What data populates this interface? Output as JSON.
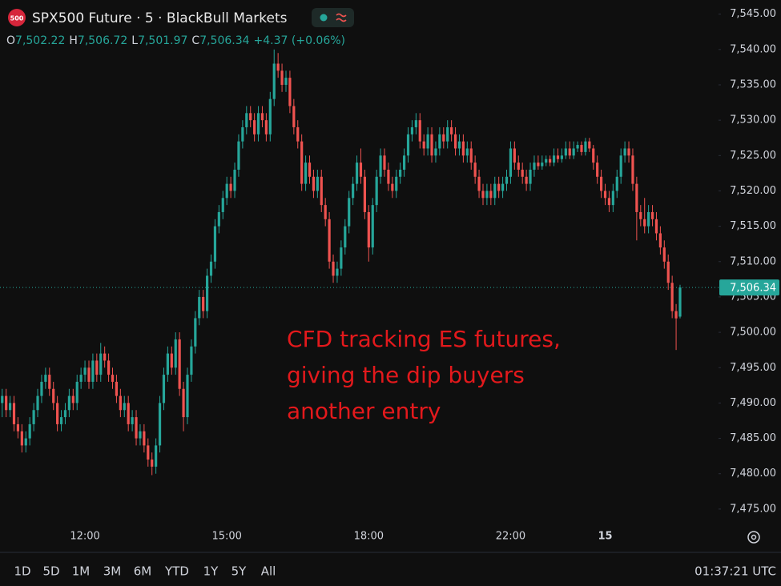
{
  "header": {
    "badge": "500",
    "title": "SPX500 Future · 5 · BlackBull Markets",
    "ohlc_legend": [
      {
        "key": "O",
        "label": "7,502.22"
      },
      {
        "key": "H",
        "label": "7,506.72"
      },
      {
        "key": "L",
        "label": "7,501.97"
      },
      {
        "key": "C",
        "label": "7,506.34"
      }
    ],
    "change_label": "+4.37 (+0.06%)"
  },
  "chart_data": {
    "type": "candlestick",
    "up_color": "#26a69a",
    "down_color": "#ef5350",
    "ylim": [
      7469.1,
      7547
    ],
    "yticks": [
      {
        "value": 7475,
        "label": "7,475.00"
      },
      {
        "value": 7480,
        "label": "7,480.00"
      },
      {
        "value": 7485,
        "label": "7,485.00"
      },
      {
        "value": 7490,
        "label": "7,490.00"
      },
      {
        "value": 7495,
        "label": "7,495.00"
      },
      {
        "value": 7500,
        "label": "7,500.00"
      },
      {
        "value": 7505,
        "label": "7,505.00"
      },
      {
        "value": 7510,
        "label": "7,510.00"
      },
      {
        "value": 7515,
        "label": "7,515.00"
      },
      {
        "value": 7520,
        "label": "7,520.00"
      },
      {
        "value": 7525,
        "label": "7,525.00"
      },
      {
        "value": 7530,
        "label": "7,530.00"
      },
      {
        "value": 7535,
        "label": "7,535.00"
      },
      {
        "value": 7540,
        "label": "7,540.00"
      },
      {
        "value": 7545,
        "label": "7,545.00"
      }
    ],
    "grid": false,
    "last_price": {
      "value": 7506.34,
      "label": "7,506.34"
    },
    "annotation": [
      "CFD tracking ES futures,",
      "giving the dip buyers",
      "another entry"
    ],
    "categories": [
      null,
      null,
      null,
      null,
      null,
      null,
      null,
      null,
      null,
      null,
      null,
      null,
      null,
      null,
      null,
      null,
      null,
      null,
      null,
      null,
      null,
      "12:00",
      null,
      null,
      null,
      null,
      null,
      null,
      null,
      null,
      null,
      null,
      null,
      null,
      null,
      null,
      null,
      null,
      null,
      null,
      null,
      null,
      null,
      null,
      null,
      null,
      null,
      null,
      null,
      null,
      null,
      null,
      null,
      null,
      null,
      null,
      null,
      "15:00",
      null,
      null,
      null,
      null,
      null,
      null,
      null,
      null,
      null,
      null,
      null,
      null,
      null,
      null,
      null,
      null,
      null,
      null,
      null,
      null,
      null,
      null,
      null,
      null,
      null,
      null,
      null,
      null,
      null,
      null,
      null,
      null,
      null,
      null,
      null,
      "18:00",
      null,
      null,
      null,
      null,
      null,
      null,
      null,
      null,
      null,
      null,
      null,
      null,
      null,
      null,
      null,
      null,
      null,
      null,
      null,
      null,
      null,
      null,
      null,
      null,
      null,
      null,
      null,
      null,
      null,
      null,
      null,
      null,
      null,
      null,
      null,
      "22:00",
      null,
      null,
      null,
      null,
      null,
      null,
      null,
      null,
      null,
      null,
      null,
      null,
      null,
      null,
      null,
      null,
      null,
      null,
      null,
      null,
      null,
      null,
      null,
      "15",
      null,
      null,
      null,
      null,
      null,
      null,
      null,
      null,
      null,
      null,
      null,
      null,
      null,
      null,
      null,
      null,
      null,
      null,
      null
    ],
    "ohlc": [
      [
        7490,
        7492,
        7488,
        7491
      ],
      [
        7491,
        7492,
        7488,
        7489
      ],
      [
        7489,
        7491,
        7488,
        7490
      ],
      [
        7490,
        7491,
        7486,
        7487
      ],
      [
        7487,
        7488,
        7485,
        7486
      ],
      [
        7486,
        7487,
        7483,
        7484
      ],
      [
        7484,
        7486,
        7483,
        7485
      ],
      [
        7485,
        7488,
        7484,
        7487
      ],
      [
        7487,
        7490,
        7486,
        7489
      ],
      [
        7489,
        7492,
        7488,
        7491
      ],
      [
        7491,
        7494,
        7490,
        7493
      ],
      [
        7493,
        7495,
        7492,
        7494
      ],
      [
        7494,
        7495,
        7491,
        7492
      ],
      [
        7492,
        7493,
        7489,
        7490
      ],
      [
        7490,
        7491,
        7486,
        7487
      ],
      [
        7487,
        7489,
        7486,
        7488
      ],
      [
        7488,
        7490,
        7487,
        7489
      ],
      [
        7489,
        7492,
        7488,
        7491
      ],
      [
        7491,
        7492,
        7489,
        7490
      ],
      [
        7490,
        7494,
        7489,
        7493
      ],
      [
        7493,
        7495,
        7492,
        7494
      ],
      [
        7494,
        7496,
        7493,
        7495
      ],
      [
        7495,
        7496,
        7492,
        7493
      ],
      [
        7493,
        7497,
        7492,
        7496
      ],
      [
        7496,
        7497,
        7493,
        7494
      ],
      [
        7494,
        7498.5,
        7493,
        7497
      ],
      [
        7497,
        7498,
        7495,
        7496
      ],
      [
        7496,
        7497,
        7493,
        7494
      ],
      [
        7494,
        7495,
        7492,
        7493
      ],
      [
        7493,
        7494,
        7490,
        7491
      ],
      [
        7491,
        7492,
        7488,
        7489
      ],
      [
        7489,
        7491,
        7488,
        7490
      ],
      [
        7490,
        7491,
        7486,
        7487
      ],
      [
        7487,
        7489,
        7486,
        7488
      ],
      [
        7488,
        7489,
        7484,
        7485
      ],
      [
        7485,
        7487,
        7484,
        7486
      ],
      [
        7486,
        7487,
        7483,
        7484
      ],
      [
        7484,
        7485,
        7481,
        7482
      ],
      [
        7482,
        7483,
        7479.8,
        7481
      ],
      [
        7481,
        7485,
        7480,
        7484
      ],
      [
        7484,
        7491,
        7483,
        7490
      ],
      [
        7490,
        7495,
        7489,
        7494
      ],
      [
        7494,
        7498,
        7493,
        7497
      ],
      [
        7497,
        7498,
        7494,
        7495
      ],
      [
        7495,
        7500,
        7494,
        7499
      ],
      [
        7499,
        7500,
        7491,
        7492
      ],
      [
        7492,
        7493,
        7486,
        7488
      ],
      [
        7488,
        7495,
        7487,
        7494
      ],
      [
        7494,
        7499,
        7493,
        7498
      ],
      [
        7498,
        7503,
        7497,
        7502
      ],
      [
        7502,
        7506,
        7501,
        7505
      ],
      [
        7505,
        7506,
        7502,
        7503
      ],
      [
        7503,
        7509,
        7502,
        7508
      ],
      [
        7508,
        7511,
        7507,
        7510
      ],
      [
        7510,
        7516,
        7509,
        7515
      ],
      [
        7515,
        7518,
        7514,
        7517
      ],
      [
        7517,
        7520,
        7516,
        7519
      ],
      [
        7519,
        7522,
        7518,
        7521
      ],
      [
        7521,
        7522,
        7519,
        7520
      ],
      [
        7520,
        7524,
        7519,
        7523
      ],
      [
        7523,
        7528,
        7522,
        7527
      ],
      [
        7527,
        7530,
        7526,
        7529
      ],
      [
        7529,
        7532,
        7528,
        7531
      ],
      [
        7531,
        7532,
        7529,
        7530
      ],
      [
        7530,
        7531,
        7527,
        7528
      ],
      [
        7528,
        7532,
        7527,
        7531
      ],
      [
        7531,
        7532,
        7529,
        7530
      ],
      [
        7530,
        7531,
        7527,
        7528
      ],
      [
        7528,
        7534,
        7527,
        7533
      ],
      [
        7533,
        7540,
        7532,
        7538
      ],
      [
        7538,
        7539.5,
        7536,
        7537
      ],
      [
        7537,
        7538,
        7534,
        7535
      ],
      [
        7535,
        7537,
        7534,
        7536
      ],
      [
        7536,
        7537,
        7531,
        7532
      ],
      [
        7532,
        7533,
        7528,
        7529
      ],
      [
        7529,
        7530,
        7526,
        7527
      ],
      [
        7527,
        7528,
        7520,
        7521
      ],
      [
        7521,
        7525,
        7520,
        7524
      ],
      [
        7524,
        7525,
        7521,
        7522
      ],
      [
        7522,
        7523,
        7519,
        7520
      ],
      [
        7520,
        7523,
        7519,
        7522
      ],
      [
        7522,
        7523,
        7517,
        7518
      ],
      [
        7518,
        7519,
        7515,
        7516
      ],
      [
        7516,
        7517,
        7509,
        7510
      ],
      [
        7510,
        7511,
        7507,
        7508
      ],
      [
        7508,
        7510,
        7507,
        7509
      ],
      [
        7509,
        7513,
        7508,
        7512
      ],
      [
        7512,
        7516,
        7511,
        7515
      ],
      [
        7515,
        7520,
        7514,
        7519
      ],
      [
        7519,
        7522,
        7518,
        7521
      ],
      [
        7521,
        7525,
        7520,
        7524
      ],
      [
        7524,
        7526,
        7521,
        7522
      ],
      [
        7522,
        7523,
        7516,
        7517
      ],
      [
        7517,
        7518,
        7510,
        7512
      ],
      [
        7512,
        7519,
        7511,
        7518
      ],
      [
        7518,
        7523,
        7517,
        7522
      ],
      [
        7522,
        7526,
        7521,
        7525
      ],
      [
        7525,
        7526,
        7522,
        7523
      ],
      [
        7523,
        7524,
        7520,
        7521
      ],
      [
        7521,
        7522,
        7519,
        7520
      ],
      [
        7520,
        7523,
        7519,
        7522
      ],
      [
        7522,
        7524,
        7521,
        7523
      ],
      [
        7523,
        7526,
        7522,
        7525
      ],
      [
        7525,
        7529,
        7524,
        7528
      ],
      [
        7528,
        7530,
        7527,
        7529
      ],
      [
        7529,
        7531,
        7528,
        7530
      ],
      [
        7530,
        7531,
        7526,
        7527
      ],
      [
        7527,
        7528,
        7525,
        7526
      ],
      [
        7526,
        7529,
        7525,
        7528
      ],
      [
        7528,
        7529,
        7524,
        7525
      ],
      [
        7525,
        7527,
        7524,
        7526
      ],
      [
        7526,
        7529,
        7525,
        7528
      ],
      [
        7528,
        7529,
        7526,
        7527
      ],
      [
        7527,
        7530,
        7526,
        7529
      ],
      [
        7529,
        7530,
        7527,
        7528
      ],
      [
        7528,
        7529,
        7525,
        7526
      ],
      [
        7526,
        7528,
        7525,
        7527
      ],
      [
        7527,
        7528,
        7524,
        7525
      ],
      [
        7525,
        7527,
        7524,
        7526
      ],
      [
        7526,
        7527,
        7523,
        7524
      ],
      [
        7524,
        7525,
        7521,
        7522
      ],
      [
        7522,
        7523,
        7519,
        7520
      ],
      [
        7520,
        7521,
        7518,
        7519
      ],
      [
        7519,
        7521,
        7518,
        7520
      ],
      [
        7520,
        7521,
        7518,
        7519
      ],
      [
        7519,
        7522,
        7518,
        7521
      ],
      [
        7521,
        7522,
        7519,
        7520
      ],
      [
        7520,
        7522,
        7519,
        7521
      ],
      [
        7521,
        7523,
        7520,
        7522
      ],
      [
        7522,
        7527,
        7521,
        7526
      ],
      [
        7526,
        7527,
        7523,
        7524
      ],
      [
        7524,
        7525,
        7522,
        7523
      ],
      [
        7523,
        7524,
        7521,
        7522
      ],
      [
        7522,
        7523,
        7520,
        7521
      ],
      [
        7521,
        7524,
        7520,
        7523
      ],
      [
        7523,
        7525,
        7522,
        7524
      ],
      [
        7524,
        7525,
        7523,
        7523.5
      ],
      [
        7523.5,
        7525,
        7523,
        7524
      ],
      [
        7524,
        7525,
        7523.5,
        7524.5
      ],
      [
        7524.5,
        7525,
        7523.5,
        7524
      ],
      [
        7524,
        7526,
        7523.5,
        7525
      ],
      [
        7525,
        7526,
        7524,
        7524.5
      ],
      [
        7524.5,
        7526,
        7524,
        7525
      ],
      [
        7525,
        7527,
        7524.5,
        7526
      ],
      [
        7526,
        7527,
        7524.5,
        7525
      ],
      [
        7525,
        7527,
        7524.5,
        7526
      ],
      [
        7526,
        7527,
        7525.5,
        7526.5
      ],
      [
        7526.5,
        7527,
        7525,
        7525.5
      ],
      [
        7525.5,
        7527.5,
        7525,
        7527
      ],
      [
        7527,
        7527.5,
        7525.5,
        7526
      ],
      [
        7526,
        7526.5,
        7523,
        7524
      ],
      [
        7524,
        7525,
        7521,
        7522
      ],
      [
        7522,
        7523,
        7519,
        7520
      ],
      [
        7520,
        7521,
        7518,
        7519
      ],
      [
        7519,
        7520,
        7517,
        7518
      ],
      [
        7518,
        7521,
        7517,
        7520
      ],
      [
        7520,
        7523,
        7519,
        7522
      ],
      [
        7522,
        7526,
        7521,
        7525
      ],
      [
        7525,
        7527,
        7524,
        7526
      ],
      [
        7526,
        7527,
        7524,
        7525
      ],
      [
        7525,
        7526,
        7520,
        7521
      ],
      [
        7521,
        7522,
        7513,
        7517
      ],
      [
        7517,
        7518,
        7515,
        7516
      ],
      [
        7516,
        7519,
        7514,
        7515
      ],
      [
        7515,
        7518,
        7514,
        7517
      ],
      [
        7517,
        7518,
        7515,
        7516
      ],
      [
        7516,
        7517,
        7513,
        7514
      ],
      [
        7514,
        7515,
        7511,
        7512
      ],
      [
        7512,
        7513,
        7509,
        7510
      ],
      [
        7510,
        7511,
        7506,
        7507
      ],
      [
        7507,
        7508,
        7502,
        7503
      ],
      [
        7503,
        7504,
        7497.5,
        7501.97
      ],
      [
        7502.22,
        7506.72,
        7501.97,
        7506.34
      ]
    ]
  },
  "toolbar": {
    "ranges": [
      "1D",
      "5D",
      "1M",
      "3M",
      "6M",
      "YTD",
      "1Y",
      "5Y",
      "All"
    ],
    "clock": "01:37:21 UTC"
  }
}
